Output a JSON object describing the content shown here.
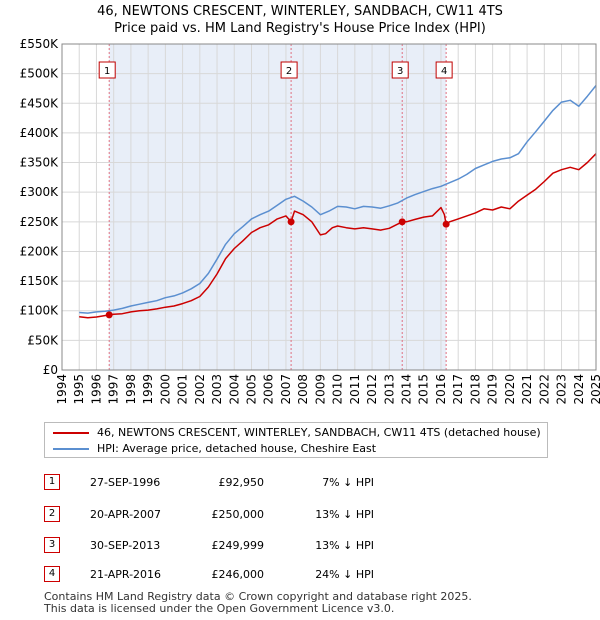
{
  "title_line1": "46, NEWTONS CRESCENT, WINTERLEY, SANDBACH, CW11 4TS",
  "title_line2": "Price paid vs. HM Land Registry's House Price Index (HPI)",
  "chart_data": {
    "type": "line",
    "xlim": [
      1994,
      2025
    ],
    "ylim": [
      0,
      550000
    ],
    "y_ticks": [
      0,
      50000,
      100000,
      150000,
      200000,
      250000,
      300000,
      350000,
      400000,
      450000,
      500000,
      550000
    ],
    "y_tick_labels": [
      "£0",
      "£50K",
      "£100K",
      "£150K",
      "£200K",
      "£250K",
      "£300K",
      "£350K",
      "£400K",
      "£450K",
      "£500K",
      "£550K"
    ],
    "x_ticks": [
      1994,
      1995,
      1996,
      1997,
      1998,
      1999,
      2000,
      2001,
      2002,
      2003,
      2004,
      2005,
      2006,
      2007,
      2008,
      2009,
      2010,
      2011,
      2012,
      2013,
      2014,
      2015,
      2016,
      2017,
      2018,
      2019,
      2020,
      2021,
      2022,
      2023,
      2024,
      2025
    ],
    "x_tick_labels": [
      "1994",
      "1995",
      "1996",
      "1997",
      "1998",
      "1999",
      "2000",
      "2001",
      "2002",
      "2003",
      "2004",
      "2005",
      "2006",
      "2007",
      "2008",
      "2009",
      "2010",
      "2011",
      "2012",
      "2013",
      "2014",
      "2015",
      "2016",
      "2017",
      "2018",
      "2019",
      "2020",
      "2021",
      "2022",
      "2023",
      "2024",
      "2025"
    ],
    "grid": true,
    "sale_bands": [
      [
        1996.74,
        2016.3
      ]
    ],
    "series": [
      {
        "name": "46, NEWTONS CRESCENT, WINTERLEY, SANDBACH, CW11 4TS (detached house)",
        "color": "#cc0000",
        "x": [
          1995.0,
          1995.5,
          1996.0,
          1996.74,
          1997.0,
          1997.5,
          1998.0,
          1998.5,
          1999.0,
          1999.5,
          2000.0,
          2000.5,
          2001.0,
          2001.5,
          2002.0,
          2002.5,
          2003.0,
          2003.5,
          2004.0,
          2004.5,
          2005.0,
          2005.5,
          2006.0,
          2006.5,
          2007.0,
          2007.3,
          2007.5,
          2008.0,
          2008.5,
          2009.0,
          2009.3,
          2009.7,
          2010.0,
          2010.5,
          2011.0,
          2011.5,
          2012.0,
          2012.5,
          2013.0,
          2013.75,
          2014.0,
          2014.5,
          2015.0,
          2015.5,
          2016.0,
          2016.2,
          2016.3,
          2016.5,
          2017.0,
          2017.5,
          2018.0,
          2018.5,
          2019.0,
          2019.5,
          2020.0,
          2020.5,
          2021.0,
          2021.5,
          2022.0,
          2022.5,
          2023.0,
          2023.5,
          2024.0,
          2024.5,
          2025.0
        ],
        "values": [
          90000,
          88000,
          89500,
          92950,
          94000,
          95000,
          98000,
          100000,
          101000,
          103000,
          106000,
          108000,
          112000,
          117000,
          124000,
          140000,
          162000,
          188000,
          205000,
          218000,
          232000,
          240000,
          245000,
          255000,
          260000,
          250000,
          268000,
          262000,
          250000,
          228000,
          230000,
          240000,
          243000,
          240000,
          238000,
          240000,
          238000,
          236000,
          239000,
          249999,
          250000,
          254000,
          258000,
          260000,
          274000,
          262000,
          246000,
          250000,
          255000,
          260000,
          265000,
          272000,
          270000,
          275000,
          272000,
          285000,
          295000,
          305000,
          318000,
          332000,
          338000,
          342000,
          338000,
          350000,
          365000
        ]
      },
      {
        "name": "HPI: Average price, detached house, Cheshire East",
        "color": "#5b8fd0",
        "x": [
          1995.0,
          1995.5,
          1996.0,
          1996.5,
          1997.0,
          1997.5,
          1998.0,
          1998.5,
          1999.0,
          1999.5,
          2000.0,
          2000.5,
          2001.0,
          2001.5,
          2002.0,
          2002.5,
          2003.0,
          2003.5,
          2004.0,
          2004.5,
          2005.0,
          2005.5,
          2006.0,
          2006.5,
          2007.0,
          2007.5,
          2008.0,
          2008.5,
          2009.0,
          2009.5,
          2010.0,
          2010.5,
          2011.0,
          2011.5,
          2012.0,
          2012.5,
          2013.0,
          2013.5,
          2014.0,
          2014.5,
          2015.0,
          2015.5,
          2016.0,
          2016.5,
          2017.0,
          2017.5,
          2018.0,
          2018.5,
          2019.0,
          2019.5,
          2020.0,
          2020.5,
          2021.0,
          2021.5,
          2022.0,
          2022.5,
          2023.0,
          2023.5,
          2024.0,
          2024.5,
          2025.0
        ],
        "values": [
          97000,
          96000,
          98000,
          99000,
          101000,
          104000,
          108000,
          111000,
          114000,
          117000,
          122000,
          125000,
          130000,
          137000,
          146000,
          163000,
          187000,
          212000,
          230000,
          242000,
          255000,
          262000,
          268000,
          278000,
          288000,
          293000,
          285000,
          275000,
          262000,
          268000,
          276000,
          275000,
          272000,
          276000,
          275000,
          273000,
          277000,
          282000,
          290000,
          296000,
          301000,
          306000,
          310000,
          316000,
          322000,
          330000,
          340000,
          346000,
          352000,
          356000,
          358000,
          365000,
          385000,
          402000,
          420000,
          438000,
          452000,
          455000,
          445000,
          462000,
          480000
        ]
      }
    ],
    "sales": [
      {
        "label": "1",
        "x": 1996.74,
        "price": 92950
      },
      {
        "label": "2",
        "x": 2007.3,
        "price": 250000
      },
      {
        "label": "3",
        "x": 2013.75,
        "price": 249999
      },
      {
        "label": "4",
        "x": 2016.3,
        "price": 246000
      }
    ]
  },
  "legend": {
    "property_label": "46, NEWTONS CRESCENT, WINTERLEY, SANDBACH, CW11 4TS (detached house)",
    "hpi_label": "HPI: Average price, detached house, Cheshire East"
  },
  "transactions": [
    {
      "num": "1",
      "date": "27-SEP-1996",
      "price": "£92,950",
      "hpi": "7% ↓ HPI"
    },
    {
      "num": "2",
      "date": "20-APR-2007",
      "price": "£250,000",
      "hpi": "13% ↓ HPI"
    },
    {
      "num": "3",
      "date": "30-SEP-2013",
      "price": "£249,999",
      "hpi": "13% ↓ HPI"
    },
    {
      "num": "4",
      "date": "21-APR-2016",
      "price": "£246,000",
      "hpi": "24% ↓ HPI"
    }
  ],
  "footer": {
    "line1": "Contains HM Land Registry data © Crown copyright and database right 2025.",
    "line2": "This data is licensed under the Open Government Licence v3.0."
  },
  "colors": {
    "property": "#cc0000",
    "hpi": "#5b8fd0",
    "band": "#e8eef8",
    "grid": "#d8d8d8"
  }
}
